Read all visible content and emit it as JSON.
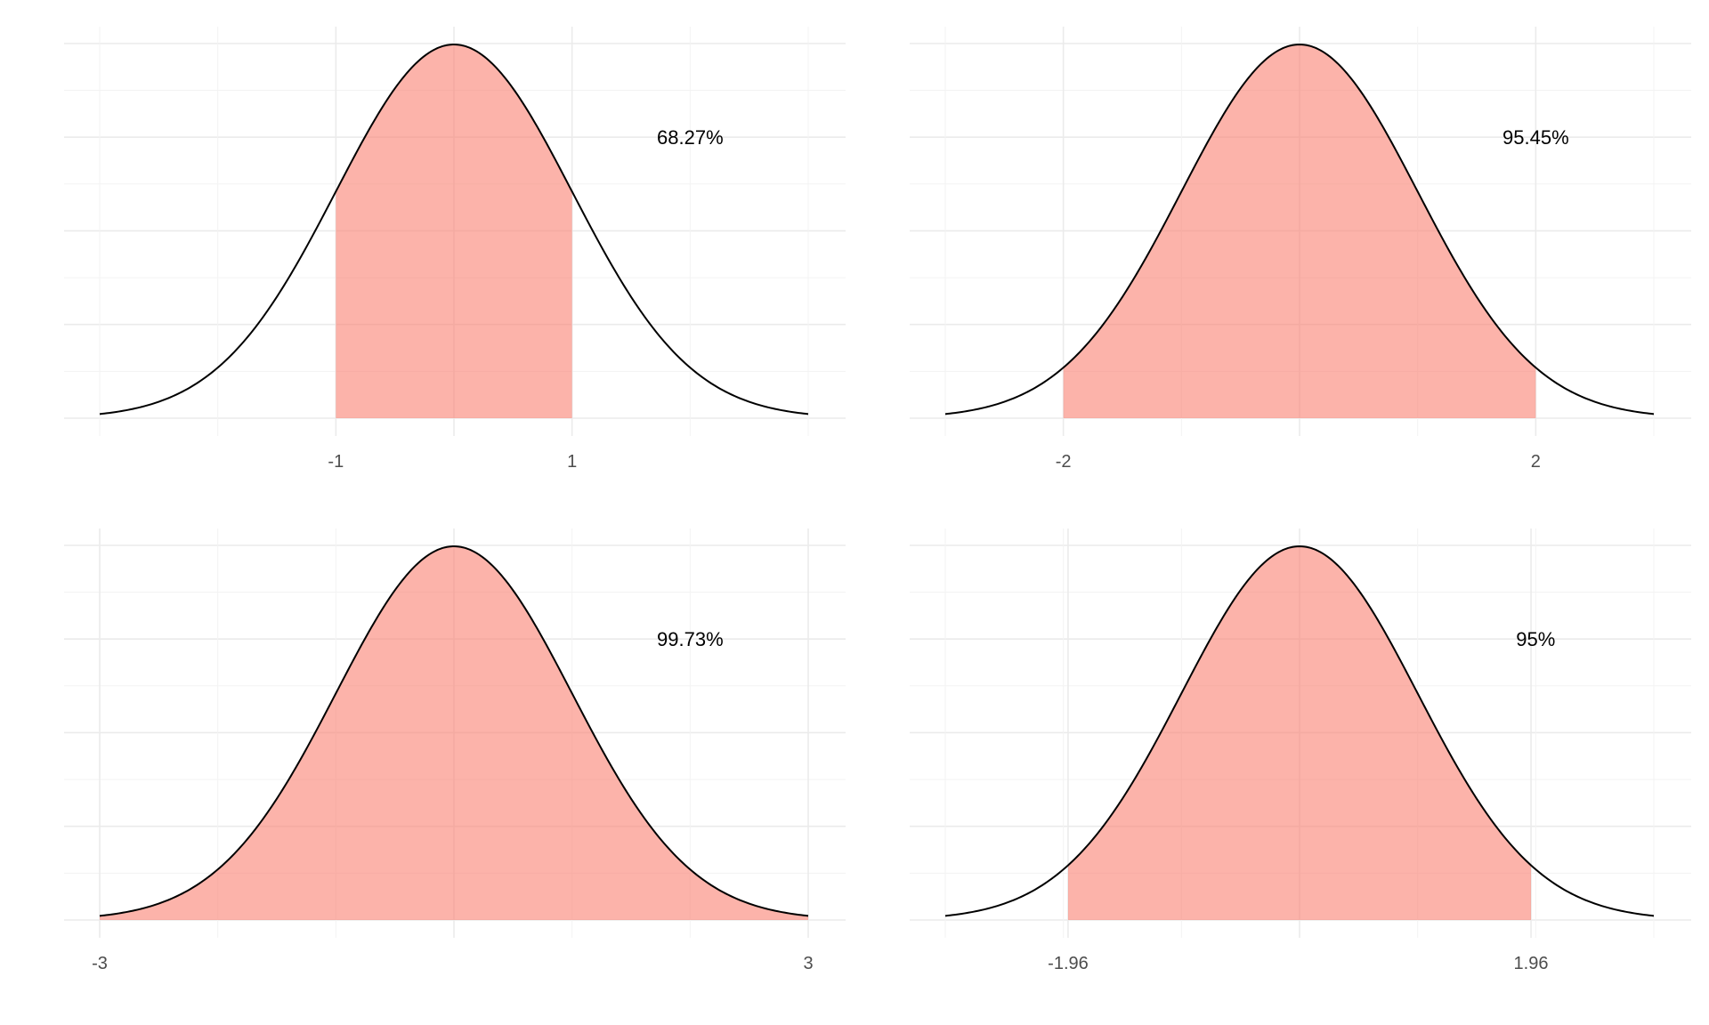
{
  "chart_data": [
    {
      "type": "area",
      "distribution": "standard normal density",
      "x_range": [
        -3,
        3
      ],
      "shade": [
        -1,
        1
      ],
      "shade_color": "#fa8072",
      "tick_values": [
        -1,
        1
      ],
      "tick_labels": [
        "-1",
        "1"
      ],
      "annotation": "68.27%",
      "annotation_position": {
        "x": 2,
        "y": 0.3
      },
      "grid": true
    },
    {
      "type": "area",
      "distribution": "standard normal density",
      "x_range": [
        -3,
        3
      ],
      "shade": [
        -2,
        2
      ],
      "shade_color": "#fa8072",
      "tick_values": [
        -2,
        2
      ],
      "tick_labels": [
        "-2",
        "2"
      ],
      "annotation": "95.45%",
      "annotation_position": {
        "x": 2,
        "y": 0.3
      },
      "grid": true
    },
    {
      "type": "area",
      "distribution": "standard normal density",
      "x_range": [
        -3,
        3
      ],
      "shade": [
        -3,
        3
      ],
      "shade_color": "#fa8072",
      "tick_values": [
        -3,
        3
      ],
      "tick_labels": [
        "-3",
        "3"
      ],
      "annotation": "99.73%",
      "annotation_position": {
        "x": 2,
        "y": 0.3
      },
      "grid": true
    },
    {
      "type": "area",
      "distribution": "standard normal density",
      "x_range": [
        -3,
        3
      ],
      "shade": [
        -1.96,
        1.96
      ],
      "shade_color": "#fa8072",
      "tick_values": [
        -1.96,
        1.96
      ],
      "tick_labels": [
        "-1.96",
        "1.96"
      ],
      "annotation": "95%",
      "annotation_position": {
        "x": 2,
        "y": 0.3
      },
      "grid": true
    }
  ]
}
